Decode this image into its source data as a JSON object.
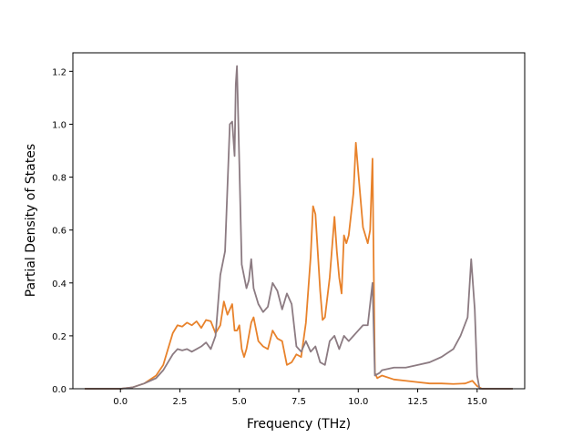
{
  "chart_data": {
    "type": "line",
    "title": "",
    "xlabel": "Frequency (THz)",
    "ylabel": "Partial Density of States",
    "xlim": [
      -2.0,
      17.0
    ],
    "ylim": [
      0.0,
      1.27
    ],
    "xticks": [
      0.0,
      2.5,
      5.0,
      7.5,
      10.0,
      12.5,
      15.0
    ],
    "xtick_labels": [
      "0.0",
      "2.5",
      "5.0",
      "7.5",
      "10.0",
      "12.5",
      "15.0"
    ],
    "yticks": [
      0.0,
      0.2,
      0.4,
      0.6,
      0.8,
      1.0,
      1.2
    ],
    "ytick_labels": [
      "0.0",
      "0.2",
      "0.4",
      "0.6",
      "0.8",
      "1.0",
      "1.2"
    ],
    "grid": false,
    "legend": "none",
    "series": [
      {
        "color": "#e8822b",
        "points": [
          [
            -1.5,
            0.0
          ],
          [
            0.0,
            0.0
          ],
          [
            0.5,
            0.005
          ],
          [
            1.0,
            0.02
          ],
          [
            1.5,
            0.05
          ],
          [
            1.8,
            0.09
          ],
          [
            2.0,
            0.15
          ],
          [
            2.2,
            0.21
          ],
          [
            2.4,
            0.24
          ],
          [
            2.6,
            0.235
          ],
          [
            2.8,
            0.25
          ],
          [
            3.0,
            0.24
          ],
          [
            3.2,
            0.255
          ],
          [
            3.4,
            0.23
          ],
          [
            3.6,
            0.26
          ],
          [
            3.8,
            0.255
          ],
          [
            4.0,
            0.21
          ],
          [
            4.2,
            0.24
          ],
          [
            4.35,
            0.33
          ],
          [
            4.5,
            0.28
          ],
          [
            4.7,
            0.32
          ],
          [
            4.8,
            0.22
          ],
          [
            4.9,
            0.22
          ],
          [
            5.0,
            0.24
          ],
          [
            5.1,
            0.15
          ],
          [
            5.2,
            0.12
          ],
          [
            5.3,
            0.15
          ],
          [
            5.5,
            0.25
          ],
          [
            5.6,
            0.27
          ],
          [
            5.8,
            0.18
          ],
          [
            6.0,
            0.16
          ],
          [
            6.2,
            0.15
          ],
          [
            6.4,
            0.22
          ],
          [
            6.6,
            0.19
          ],
          [
            6.8,
            0.18
          ],
          [
            7.0,
            0.09
          ],
          [
            7.2,
            0.1
          ],
          [
            7.4,
            0.13
          ],
          [
            7.6,
            0.12
          ],
          [
            7.8,
            0.25
          ],
          [
            8.0,
            0.5
          ],
          [
            8.1,
            0.69
          ],
          [
            8.2,
            0.66
          ],
          [
            8.4,
            0.37
          ],
          [
            8.5,
            0.26
          ],
          [
            8.6,
            0.27
          ],
          [
            8.8,
            0.42
          ],
          [
            9.0,
            0.65
          ],
          [
            9.1,
            0.52
          ],
          [
            9.2,
            0.42
          ],
          [
            9.3,
            0.36
          ],
          [
            9.4,
            0.58
          ],
          [
            9.5,
            0.55
          ],
          [
            9.6,
            0.58
          ],
          [
            9.8,
            0.74
          ],
          [
            9.9,
            0.93
          ],
          [
            10.0,
            0.82
          ],
          [
            10.2,
            0.61
          ],
          [
            10.4,
            0.55
          ],
          [
            10.5,
            0.6
          ],
          [
            10.6,
            0.87
          ],
          [
            10.7,
            0.06
          ],
          [
            10.8,
            0.04
          ],
          [
            11.0,
            0.05
          ],
          [
            11.5,
            0.035
          ],
          [
            12.0,
            0.03
          ],
          [
            12.5,
            0.025
          ],
          [
            13.0,
            0.02
          ],
          [
            13.5,
            0.02
          ],
          [
            14.0,
            0.018
          ],
          [
            14.5,
            0.02
          ],
          [
            14.8,
            0.03
          ],
          [
            15.0,
            0.01
          ],
          [
            15.2,
            0.0
          ],
          [
            16.5,
            0.0
          ]
        ]
      },
      {
        "color": "#8c7b82",
        "points": [
          [
            -1.5,
            0.0
          ],
          [
            0.0,
            0.0
          ],
          [
            0.5,
            0.005
          ],
          [
            1.0,
            0.02
          ],
          [
            1.5,
            0.04
          ],
          [
            1.8,
            0.07
          ],
          [
            2.0,
            0.1
          ],
          [
            2.2,
            0.13
          ],
          [
            2.4,
            0.15
          ],
          [
            2.6,
            0.145
          ],
          [
            2.8,
            0.15
          ],
          [
            3.0,
            0.14
          ],
          [
            3.2,
            0.15
          ],
          [
            3.4,
            0.16
          ],
          [
            3.6,
            0.175
          ],
          [
            3.8,
            0.15
          ],
          [
            4.0,
            0.2
          ],
          [
            4.2,
            0.43
          ],
          [
            4.4,
            0.52
          ],
          [
            4.6,
            1.0
          ],
          [
            4.7,
            1.01
          ],
          [
            4.8,
            0.88
          ],
          [
            4.85,
            1.15
          ],
          [
            4.9,
            1.22
          ],
          [
            5.0,
            0.85
          ],
          [
            5.1,
            0.47
          ],
          [
            5.3,
            0.38
          ],
          [
            5.4,
            0.41
          ],
          [
            5.5,
            0.49
          ],
          [
            5.6,
            0.38
          ],
          [
            5.8,
            0.32
          ],
          [
            6.0,
            0.29
          ],
          [
            6.2,
            0.31
          ],
          [
            6.4,
            0.4
          ],
          [
            6.6,
            0.37
          ],
          [
            6.8,
            0.3
          ],
          [
            7.0,
            0.36
          ],
          [
            7.2,
            0.32
          ],
          [
            7.4,
            0.16
          ],
          [
            7.6,
            0.14
          ],
          [
            7.8,
            0.18
          ],
          [
            8.0,
            0.14
          ],
          [
            8.2,
            0.16
          ],
          [
            8.4,
            0.1
          ],
          [
            8.6,
            0.09
          ],
          [
            8.8,
            0.18
          ],
          [
            9.0,
            0.2
          ],
          [
            9.2,
            0.15
          ],
          [
            9.4,
            0.2
          ],
          [
            9.6,
            0.18
          ],
          [
            9.8,
            0.2
          ],
          [
            10.0,
            0.22
          ],
          [
            10.2,
            0.24
          ],
          [
            10.4,
            0.24
          ],
          [
            10.6,
            0.4
          ],
          [
            10.7,
            0.05
          ],
          [
            10.9,
            0.06
          ],
          [
            11.0,
            0.07
          ],
          [
            11.5,
            0.08
          ],
          [
            12.0,
            0.08
          ],
          [
            12.5,
            0.09
          ],
          [
            13.0,
            0.1
          ],
          [
            13.5,
            0.12
          ],
          [
            14.0,
            0.15
          ],
          [
            14.3,
            0.2
          ],
          [
            14.6,
            0.27
          ],
          [
            14.75,
            0.49
          ],
          [
            14.9,
            0.3
          ],
          [
            15.0,
            0.05
          ],
          [
            15.1,
            0.0
          ],
          [
            16.5,
            0.0
          ]
        ]
      }
    ]
  }
}
